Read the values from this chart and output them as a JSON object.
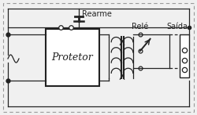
{
  "bg_color": "#f0f0f0",
  "line_color": "#222222",
  "label_protetor": "Protetor",
  "label_rearme": "Rearme",
  "label_rele": "Relé",
  "label_saida": "Saída",
  "fig_width": 2.5,
  "fig_height": 1.47,
  "dpi": 100
}
